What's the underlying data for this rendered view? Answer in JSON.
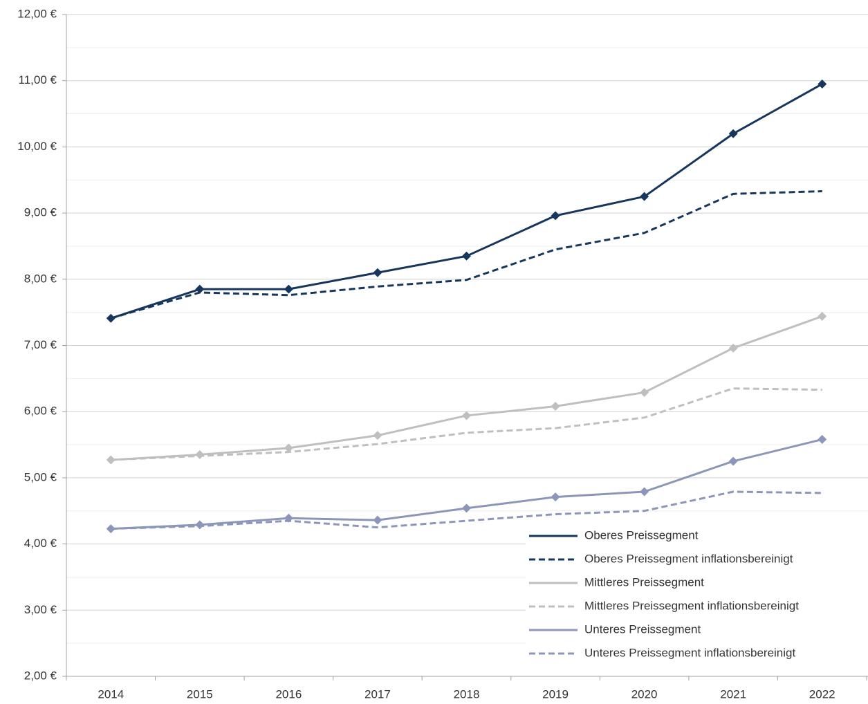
{
  "chart_data": {
    "type": "line",
    "categories": [
      "2014",
      "2015",
      "2016",
      "2017",
      "2018",
      "2019",
      "2020",
      "2021",
      "2022"
    ],
    "series": [
      {
        "name": "Oberes Preissegment",
        "color": "#17365d",
        "dash": false,
        "marker": "diamond",
        "values": [
          7.41,
          7.85,
          7.85,
          8.1,
          8.35,
          8.96,
          9.25,
          10.2,
          10.95
        ]
      },
      {
        "name": "Oberes Preissegment inflationsbereinigt",
        "color": "#17365d",
        "dash": true,
        "marker": "none",
        "values": [
          7.41,
          7.8,
          7.76,
          7.89,
          7.99,
          8.45,
          8.7,
          9.29,
          9.33
        ]
      },
      {
        "name": "Mittleres Preissegment",
        "color": "#bfbfbf",
        "dash": false,
        "marker": "diamond",
        "values": [
          5.27,
          5.35,
          5.45,
          5.64,
          5.94,
          6.08,
          6.29,
          6.96,
          7.44
        ]
      },
      {
        "name": "Mittleres Preissegment inflationsbereinigt",
        "color": "#bfbfbf",
        "dash": true,
        "marker": "none",
        "values": [
          5.27,
          5.33,
          5.39,
          5.51,
          5.68,
          5.75,
          5.91,
          6.35,
          6.33
        ]
      },
      {
        "name": "Unteres Preissegment",
        "color": "#8c96b9",
        "dash": false,
        "marker": "diamond",
        "values": [
          4.23,
          4.29,
          4.39,
          4.36,
          4.54,
          4.71,
          4.79,
          5.25,
          5.58
        ]
      },
      {
        "name": "Unteres Preissegment inflationsbereinigt",
        "color": "#8c96b9",
        "dash": true,
        "marker": "none",
        "values": [
          4.23,
          4.27,
          4.35,
          4.25,
          4.35,
          4.45,
          4.5,
          4.79,
          4.77
        ]
      }
    ],
    "ylim": [
      2,
      12
    ],
    "yticks": [
      {
        "value": 2,
        "label": "2,00 €"
      },
      {
        "value": 3,
        "label": "3,00 €"
      },
      {
        "value": 4,
        "label": "4,00 €"
      },
      {
        "value": 5,
        "label": "5,00 €"
      },
      {
        "value": 6,
        "label": "6,00 €"
      },
      {
        "value": 7,
        "label": "7,00 €"
      },
      {
        "value": 8,
        "label": "8,00 €"
      },
      {
        "value": 9,
        "label": "9,00 €"
      },
      {
        "value": 10,
        "label": "10,00 €"
      },
      {
        "value": 11,
        "label": "11,00 €"
      },
      {
        "value": 12,
        "label": "12,00 €"
      }
    ],
    "minor_yticks": [
      2.5,
      3.5,
      4.5,
      5.5,
      6.5,
      7.5,
      8.5,
      9.5,
      10.5,
      11.5
    ],
    "grid": true,
    "legend": "bottom-right"
  }
}
